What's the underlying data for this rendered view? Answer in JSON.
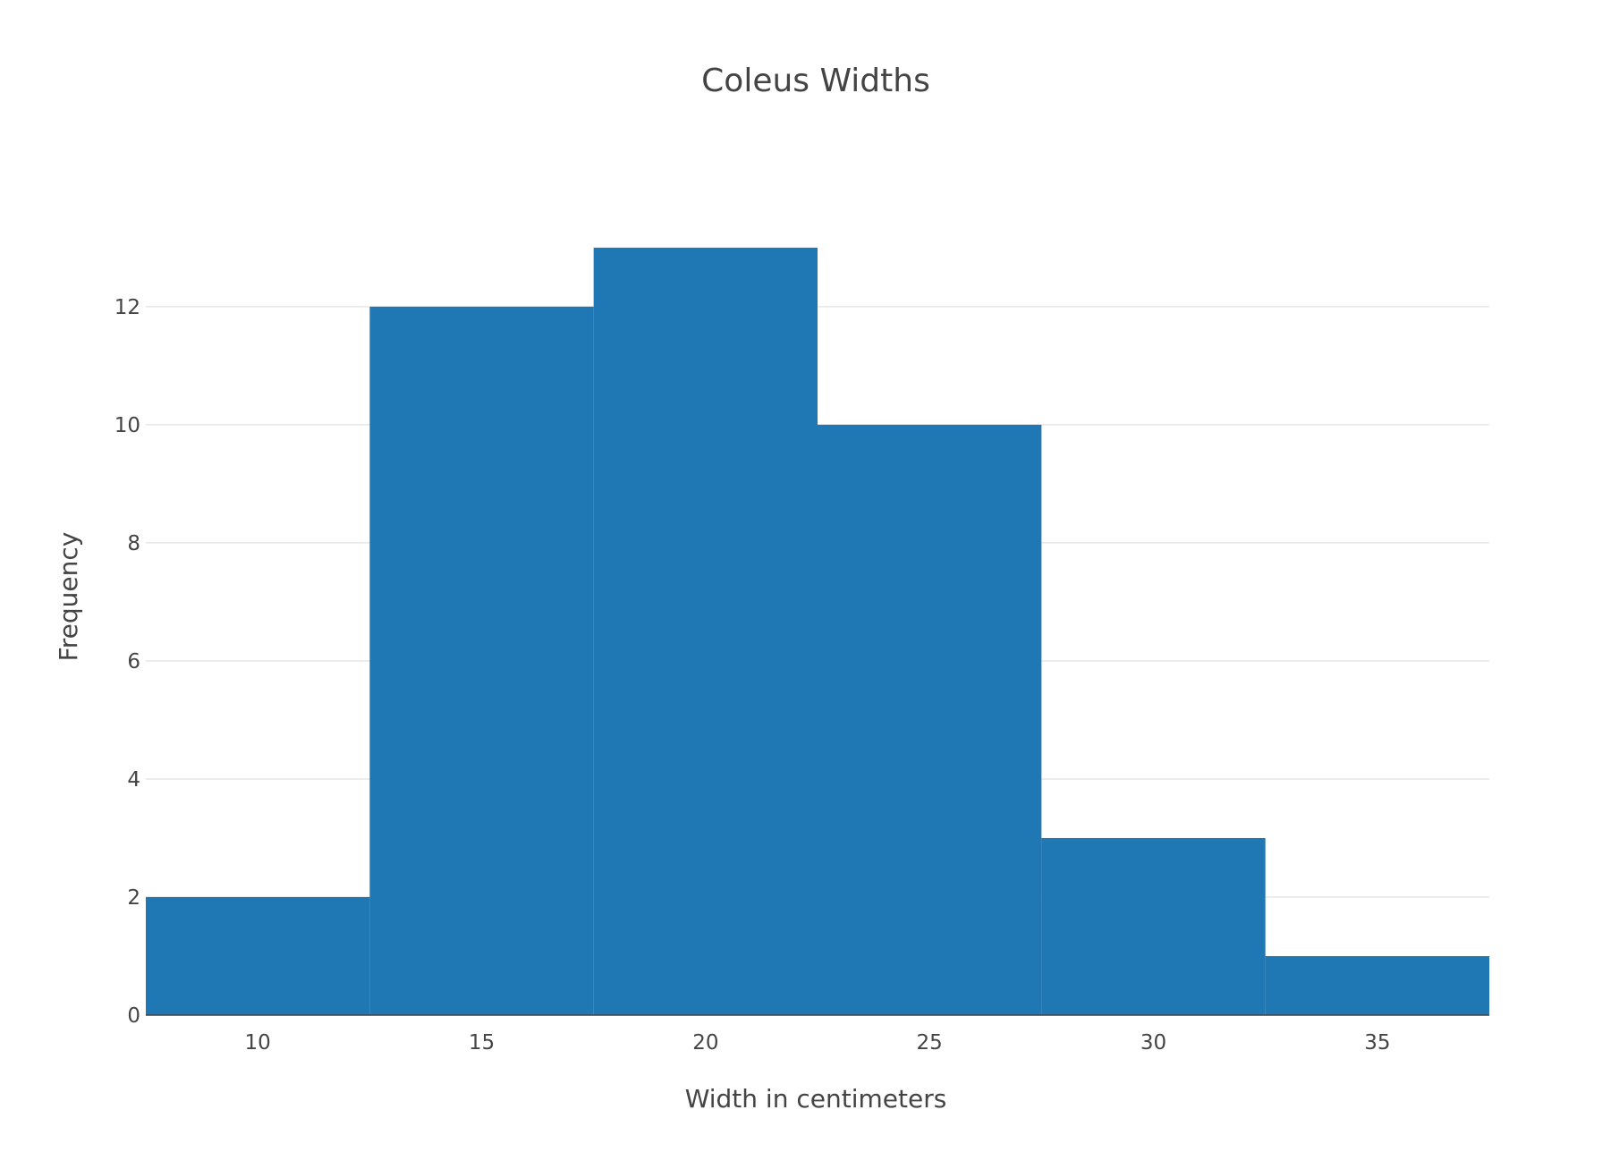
{
  "chart_data": {
    "type": "bar",
    "title": "Coleus Widths",
    "xlabel": "Width in centimeters",
    "ylabel": "Frequency",
    "bins": [
      {
        "start": 7.5,
        "end": 12.5,
        "count": 2
      },
      {
        "start": 12.5,
        "end": 17.5,
        "count": 12
      },
      {
        "start": 17.5,
        "end": 22.5,
        "count": 13
      },
      {
        "start": 22.5,
        "end": 27.5,
        "count": 10
      },
      {
        "start": 27.5,
        "end": 32.5,
        "count": 3
      },
      {
        "start": 32.5,
        "end": 37.5,
        "count": 1
      }
    ],
    "xlim": [
      7.5,
      37.5
    ],
    "ylim": [
      0,
      13.68
    ],
    "x_ticks": [
      10,
      15,
      20,
      25,
      30,
      35
    ],
    "x_tick_labels": [
      "10",
      "15",
      "20",
      "25",
      "30",
      "35"
    ],
    "y_ticks": [
      0,
      2,
      4,
      6,
      8,
      10,
      12
    ],
    "y_tick_labels": [
      "0",
      "2",
      "4",
      "6",
      "8",
      "10",
      "12"
    ],
    "grid": true,
    "bar_color": "#1f77b4",
    "grid_color": "#e6e6e6",
    "text_color": "#444444"
  }
}
